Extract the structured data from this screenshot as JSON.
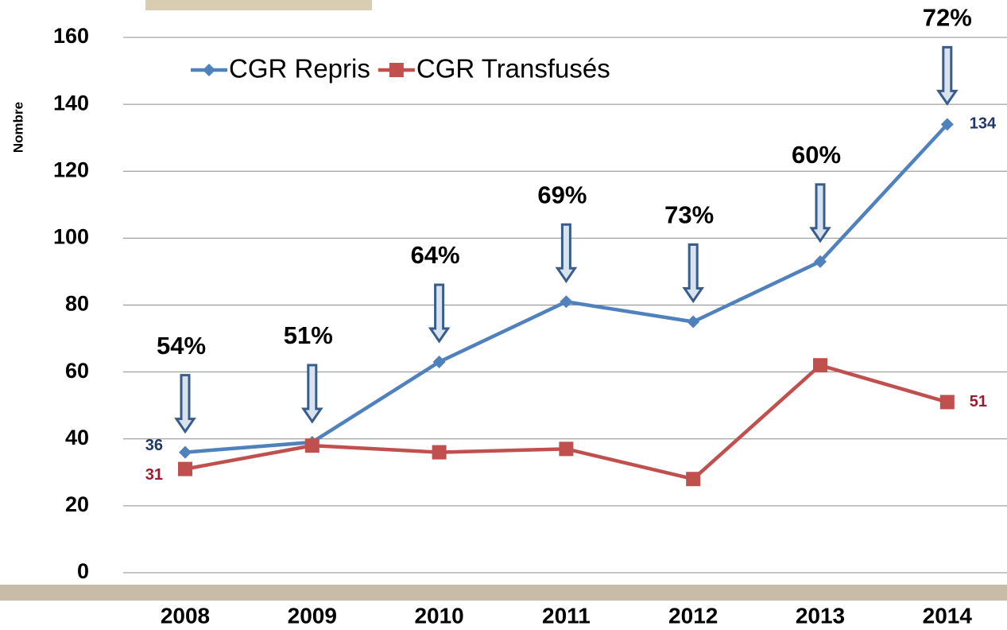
{
  "chart_data": {
    "type": "line",
    "y_label": "Nombre",
    "categories": [
      "2008",
      "2009",
      "2010",
      "2011",
      "2012",
      "2013",
      "2014"
    ],
    "series": [
      {
        "name": "CGR Repris",
        "color": "#4f81bd",
        "marker": "diamond",
        "label_color": "#1f3864",
        "values": [
          36,
          39,
          63,
          81,
          75,
          93,
          134
        ],
        "value_labels": [
          "36",
          null,
          null,
          null,
          null,
          null,
          "134"
        ]
      },
      {
        "name": "CGR Transfusés",
        "color": "#c0504d",
        "marker": "square",
        "label_color": "#9b1c31",
        "values": [
          31,
          38,
          36,
          37,
          28,
          62,
          51
        ],
        "value_labels": [
          "31",
          null,
          null,
          null,
          null,
          null,
          "51"
        ]
      }
    ],
    "annotations": [
      "54%",
      "51%",
      "64%",
      "69%",
      "73%",
      "60%",
      "72%"
    ],
    "ylim": [
      0,
      160
    ],
    "yticks": [
      0,
      20,
      40,
      60,
      80,
      100,
      120,
      140,
      160
    ],
    "grid": true,
    "legend": "top"
  }
}
